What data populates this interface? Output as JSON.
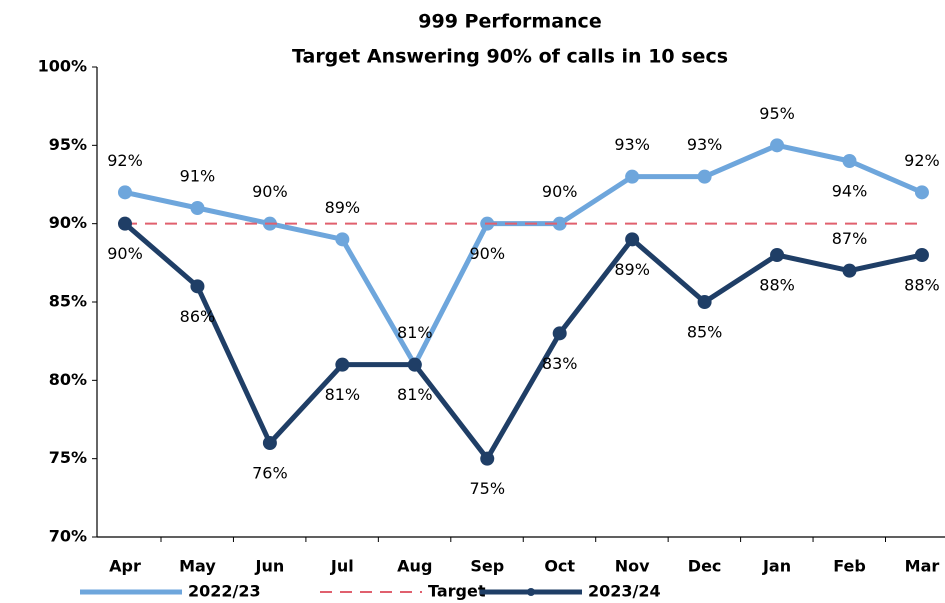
{
  "chart_data": {
    "type": "line",
    "title": "999 Performance",
    "subtitle": "Target Answering 90% of calls in 10 secs",
    "categories": [
      "Apr",
      "May",
      "Jun",
      "Jul",
      "Aug",
      "Sep",
      "Oct",
      "Nov",
      "Dec",
      "Jan",
      "Feb",
      "Mar"
    ],
    "series": [
      {
        "name": "2022/23",
        "color": "#6ea6dc",
        "style": "solid",
        "values": [
          92,
          91,
          90,
          89,
          81,
          90,
          90,
          93,
          93,
          95,
          94,
          92
        ],
        "value_labels": [
          "92%",
          "91%",
          "90%",
          "89%",
          "81%",
          "90%",
          "90%",
          "93%",
          "93%",
          "95%",
          "94%",
          "92%"
        ]
      },
      {
        "name": "Target",
        "color": "#e0606e",
        "style": "dashed",
        "values": [
          90,
          90,
          90,
          90,
          90,
          90,
          90,
          90,
          90,
          90,
          90,
          90
        ]
      },
      {
        "name": "2023/24",
        "color": "#1f3e66",
        "style": "solid",
        "values": [
          90,
          86,
          76,
          81,
          81,
          75,
          83,
          89,
          85,
          88,
          87,
          88
        ],
        "value_labels": [
          "90%",
          "86%",
          "76%",
          "81%",
          "81%",
          "75%",
          "83%",
          "89%",
          "85%",
          "88%",
          "87%",
          "88%"
        ]
      }
    ],
    "ylim": [
      70,
      100
    ],
    "yticks": [
      {
        "value": 70,
        "label": "70%"
      },
      {
        "value": 75,
        "label": "75%"
      },
      {
        "value": 80,
        "label": "80%"
      },
      {
        "value": 85,
        "label": "85%"
      },
      {
        "value": 90,
        "label": "90%"
      },
      {
        "value": 95,
        "label": "95%"
      },
      {
        "value": 100,
        "label": "100%"
      }
    ],
    "grid": false
  }
}
